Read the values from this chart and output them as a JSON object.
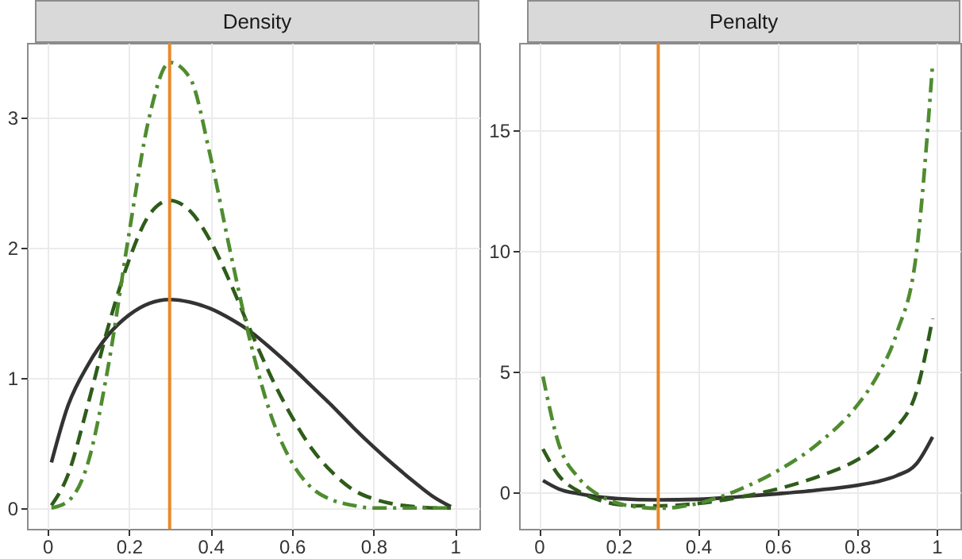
{
  "chart_data": [
    {
      "type": "line",
      "title": "Density",
      "xlim": [
        -0.05,
        1.06
      ],
      "ylim": [
        -0.16,
        3.57
      ],
      "xticks": [
        0,
        0.2,
        0.4,
        0.6,
        0.8,
        1
      ],
      "yticks": [
        0,
        1,
        2,
        3
      ],
      "grid": true,
      "ref_lines": [
        {
          "axis": "x",
          "value": 0.3,
          "color": "#e8892a"
        }
      ],
      "series": [
        {
          "color": "#333333",
          "line_style": "solid",
          "x": [
            0.01,
            0.05,
            0.1,
            0.15,
            0.2,
            0.25,
            0.3,
            0.35,
            0.4,
            0.45,
            0.5,
            0.55,
            0.6,
            0.65,
            0.7,
            0.75,
            0.8,
            0.85,
            0.9,
            0.95,
            0.99
          ],
          "values": [
            0.35,
            0.78,
            1.1,
            1.33,
            1.48,
            1.57,
            1.6,
            1.58,
            1.53,
            1.45,
            1.35,
            1.22,
            1.08,
            0.93,
            0.78,
            0.62,
            0.47,
            0.33,
            0.2,
            0.08,
            0.01
          ]
        },
        {
          "color": "#2e5c1a",
          "line_style": "dashed",
          "x": [
            0.01,
            0.05,
            0.1,
            0.15,
            0.2,
            0.25,
            0.3,
            0.35,
            0.4,
            0.45,
            0.5,
            0.55,
            0.6,
            0.65,
            0.7,
            0.75,
            0.8,
            0.85,
            0.9,
            0.95,
            0.99
          ],
          "values": [
            0.02,
            0.25,
            0.8,
            1.4,
            1.9,
            2.25,
            2.36,
            2.28,
            2.05,
            1.72,
            1.35,
            1.0,
            0.7,
            0.45,
            0.27,
            0.14,
            0.07,
            0.03,
            0.01,
            0,
            0
          ]
        },
        {
          "color": "#4f8c2f",
          "line_style": "dashdot",
          "x": [
            0.01,
            0.05,
            0.1,
            0.15,
            0.2,
            0.25,
            0.3,
            0.35,
            0.4,
            0.45,
            0.5,
            0.55,
            0.6,
            0.65,
            0.7,
            0.75,
            0.8,
            0.9,
            0.99
          ],
          "values": [
            0,
            0.05,
            0.35,
            1.1,
            2.1,
            3.0,
            3.42,
            3.3,
            2.7,
            1.95,
            1.25,
            0.7,
            0.35,
            0.15,
            0.06,
            0.02,
            0,
            0,
            0
          ]
        }
      ]
    },
    {
      "type": "line",
      "title": "Penalty",
      "xlim": [
        -0.05,
        1.06
      ],
      "ylim": [
        -1.5,
        18.6
      ],
      "xticks": [
        0,
        0.2,
        0.4,
        0.6,
        0.8,
        1
      ],
      "yticks": [
        0,
        5,
        10,
        15
      ],
      "grid": true,
      "ref_lines": [
        {
          "axis": "x",
          "value": 0.3,
          "color": "#e8892a"
        }
      ],
      "series": [
        {
          "color": "#333333",
          "line_style": "solid",
          "x": [
            0.01,
            0.05,
            0.1,
            0.2,
            0.3,
            0.4,
            0.5,
            0.6,
            0.7,
            0.8,
            0.85,
            0.9,
            0.95,
            0.99
          ],
          "values": [
            0.5,
            0.15,
            -0.05,
            -0.25,
            -0.3,
            -0.28,
            -0.18,
            -0.05,
            0.1,
            0.3,
            0.45,
            0.7,
            1.2,
            2.3
          ]
        },
        {
          "color": "#2e5c1a",
          "line_style": "dashed",
          "x": [
            0.01,
            0.05,
            0.1,
            0.15,
            0.2,
            0.25,
            0.3,
            0.4,
            0.5,
            0.6,
            0.7,
            0.8,
            0.85,
            0.9,
            0.95,
            0.99
          ],
          "values": [
            1.8,
            0.7,
            0.05,
            -0.3,
            -0.5,
            -0.55,
            -0.55,
            -0.45,
            -0.2,
            0.15,
            0.65,
            1.35,
            1.9,
            2.7,
            4.2,
            7.2
          ]
        },
        {
          "color": "#4f8c2f",
          "line_style": "dashdot",
          "x": [
            0.01,
            0.05,
            0.1,
            0.15,
            0.2,
            0.25,
            0.3,
            0.35,
            0.4,
            0.5,
            0.6,
            0.7,
            0.8,
            0.85,
            0.9,
            0.95,
            0.99
          ],
          "values": [
            4.8,
            2.0,
            0.6,
            -0.1,
            -0.45,
            -0.6,
            -0.65,
            -0.6,
            -0.45,
            0.1,
            0.9,
            2.0,
            3.6,
            4.8,
            6.6,
            10.0,
            17.7
          ]
        }
      ]
    }
  ]
}
